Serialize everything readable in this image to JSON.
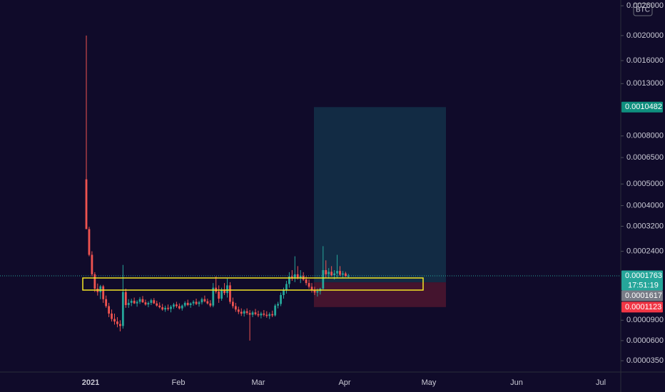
{
  "chart_data": {
    "type": "candlestick",
    "currency": "BTC",
    "scale": "log",
    "ylim": [
      2.27e-05,
      0.002735
    ],
    "yticks": [
      {
        "value": 0.0026,
        "label": "0.0026000"
      },
      {
        "value": 0.002,
        "label": "0.0020000"
      },
      {
        "value": 0.0016,
        "label": "0.0016000"
      },
      {
        "value": 0.0013,
        "label": "0.0013000"
      },
      {
        "value": 0.0008,
        "label": "0.0008000"
      },
      {
        "value": 0.00065,
        "label": "0.0006500"
      },
      {
        "value": 0.0005,
        "label": "0.0005000"
      },
      {
        "value": 0.0004,
        "label": "0.0004000"
      },
      {
        "value": 0.00032,
        "label": "0.0003200"
      },
      {
        "value": 0.00024,
        "label": "0.0002400"
      },
      {
        "value": 9e-05,
        "label": "0.0000900"
      },
      {
        "value": 6e-05,
        "label": "0.0000600"
      },
      {
        "value": 3.5e-05,
        "label": "0.0000350"
      }
    ],
    "xticks": [
      "2021",
      "Feb",
      "Mar",
      "Apr",
      "May",
      "Jun",
      "Jul"
    ],
    "up_color": "#26a69a",
    "down_color": "#ef5350",
    "open": [
      0.000524,
      0.00031,
      0.00023,
      0.00018,
      0.000148,
      0.000141,
      0.000153,
      0.000127,
      0.000114,
      0.000101,
      9.2e-05,
      8.8e-05,
      8.4e-05,
      8.1e-05,
      0.000141,
      0.000116,
      0.00012,
      0.000124,
      0.000119,
      0.000122,
      0.000127,
      0.000121,
      0.000117,
      0.00012,
      0.000125,
      0.000119,
      0.000115,
      0.000112,
      0.000108,
      0.000111,
      0.000109,
      0.000113,
      0.000117,
      0.000114,
      0.00011,
      0.000115,
      0.00012,
      0.000116,
      0.000119,
      0.000122,
      0.000118,
      0.000121,
      0.000127,
      0.000123,
      0.000119,
      0.000115,
      0.00015,
      0.000142,
      0.000128,
      0.000146,
      0.000139,
      0.000155,
      0.000122,
      0.000114,
      0.000108,
      0.000104,
      0.000101,
      0.000105,
      0.000102,
      9.9e-05,
      0.000103,
      0.0001,
      9.8e-05,
      0.000101,
      9.9e-05,
      9.7e-05,
      0.0001,
      9.8e-05,
      0.000115,
      0.000118,
      0.000135,
      0.000145,
      0.000158,
      0.000175,
      0.00017,
      0.00018,
      0.000172,
      0.000176,
      0.000168,
      0.00016,
      0.000152,
      0.000145,
      0.00014,
      0.000143,
      0.000148,
      0.00019,
      0.00018,
      0.000186,
      0.000178,
      0.000182,
      0.000188,
      0.000179,
      0.000182,
      0.000176
    ],
    "high": [
      0.002,
      0.000318,
      0.00024,
      0.000185,
      0.000159,
      0.000156,
      0.000156,
      0.000134,
      0.00012,
      0.000108,
      0.000101,
      9.5e-05,
      9e-05,
      0.000203,
      0.000148,
      0.000127,
      0.000128,
      0.00013,
      0.000125,
      0.000131,
      0.000133,
      0.000126,
      0.000123,
      0.000128,
      0.000129,
      0.000124,
      0.000121,
      0.000118,
      0.000115,
      0.000117,
      0.000116,
      0.00012,
      0.000122,
      0.000119,
      0.000117,
      0.000123,
      0.000126,
      0.000121,
      0.000125,
      0.000128,
      0.000124,
      0.00013,
      0.000134,
      0.000128,
      0.000125,
      0.00016,
      0.000175,
      0.000155,
      0.00015,
      0.00016,
      0.00017,
      0.000162,
      0.00013,
      0.00012,
      0.000113,
      0.00011,
      0.000108,
      0.00011,
      0.000107,
      0.000106,
      0.000109,
      0.000106,
      0.000104,
      0.000107,
      0.000105,
      0.000103,
      0.000106,
      0.000118,
      0.000122,
      0.00014,
      0.00015,
      0.000165,
      0.000185,
      0.00019,
      0.000226,
      0.0002,
      0.00019,
      0.000185,
      0.000175,
      0.000168,
      0.00016,
      0.000152,
      0.000148,
      0.00015,
      0.000255,
      0.000215,
      0.000195,
      0.0002,
      0.00019,
      0.00023,
      0.0002,
      0.000188,
      0.000186,
      0.000181
    ],
    "low": [
      0.00031,
      0.000226,
      0.000175,
      0.000141,
      0.000134,
      0.000127,
      0.00012,
      0.000111,
      9.5e-05,
      8.8e-05,
      8.3e-05,
      7.9e-05,
      7.3e-05,
      7.7e-05,
      0.000111,
      0.000111,
      0.000114,
      0.000118,
      0.000113,
      0.000118,
      0.00012,
      0.000115,
      0.000112,
      0.000116,
      0.000118,
      0.000113,
      0.00011,
      0.000106,
      0.000104,
      0.000106,
      0.000103,
      0.000109,
      0.000111,
      0.000108,
      0.000106,
      0.000112,
      0.000114,
      0.000111,
      0.000115,
      0.000116,
      0.000113,
      0.000117,
      0.000121,
      0.000117,
      0.000112,
      0.000112,
      0.000138,
      0.00012,
      0.000124,
      0.000135,
      0.00013,
      0.000118,
      0.00011,
      0.000104,
      0.0001,
      9.7e-05,
      9.6e-05,
      9.9e-05,
      6e-05,
      9.5e-05,
      9.8e-05,
      9.5e-05,
      9.3e-05,
      9.6e-05,
      9.4e-05,
      9.2e-05,
      9.5e-05,
      9.6e-05,
      0.00011,
      0.000114,
      0.000128,
      0.000138,
      0.00015,
      0.000165,
      0.000162,
      0.000168,
      0.00016,
      0.000165,
      0.000155,
      0.000148,
      0.00014,
      0.000135,
      0.000132,
      0.000136,
      0.000145,
      0.000172,
      0.00017,
      0.000175,
      0.000168,
      0.000172,
      0.000176,
      0.000172,
      0.000174,
      0.000172
    ],
    "close": [
      0.00031,
      0.00023,
      0.00018,
      0.000148,
      0.000141,
      0.000153,
      0.000127,
      0.000114,
      0.000101,
      9.2e-05,
      8.8e-05,
      8.4e-05,
      8.1e-05,
      0.000141,
      0.000116,
      0.00012,
      0.000124,
      0.000119,
      0.000122,
      0.000127,
      0.000121,
      0.000117,
      0.00012,
      0.000125,
      0.000119,
      0.000115,
      0.000112,
      0.000108,
      0.000111,
      0.000109,
      0.000113,
      0.000117,
      0.000114,
      0.00011,
      0.000115,
      0.00012,
      0.000116,
      0.000119,
      0.000122,
      0.000118,
      0.000121,
      0.000127,
      0.000123,
      0.000119,
      0.000115,
      0.00015,
      0.000142,
      0.000128,
      0.000146,
      0.000139,
      0.000155,
      0.000122,
      0.000114,
      0.000108,
      0.000104,
      0.000101,
      0.000105,
      0.000102,
      9.9e-05,
      0.000103,
      0.0001,
      9.8e-05,
      0.000101,
      9.9e-05,
      9.7e-05,
      0.0001,
      9.8e-05,
      0.000115,
      0.000118,
      0.000135,
      0.000145,
      0.000158,
      0.000175,
      0.00017,
      0.00018,
      0.000172,
      0.000176,
      0.000168,
      0.00016,
      0.000152,
      0.000145,
      0.00014,
      0.000143,
      0.000148,
      0.00019,
      0.00018,
      0.000186,
      0.000178,
      0.000182,
      0.000188,
      0.000179,
      0.000182,
      0.000176,
      0.0001763
    ],
    "last_price": 0.0001763,
    "countdown": "17:51:19",
    "position": {
      "target": 0.0010482,
      "entry": 0.0001617,
      "stop": 0.0001123
    }
  }
}
